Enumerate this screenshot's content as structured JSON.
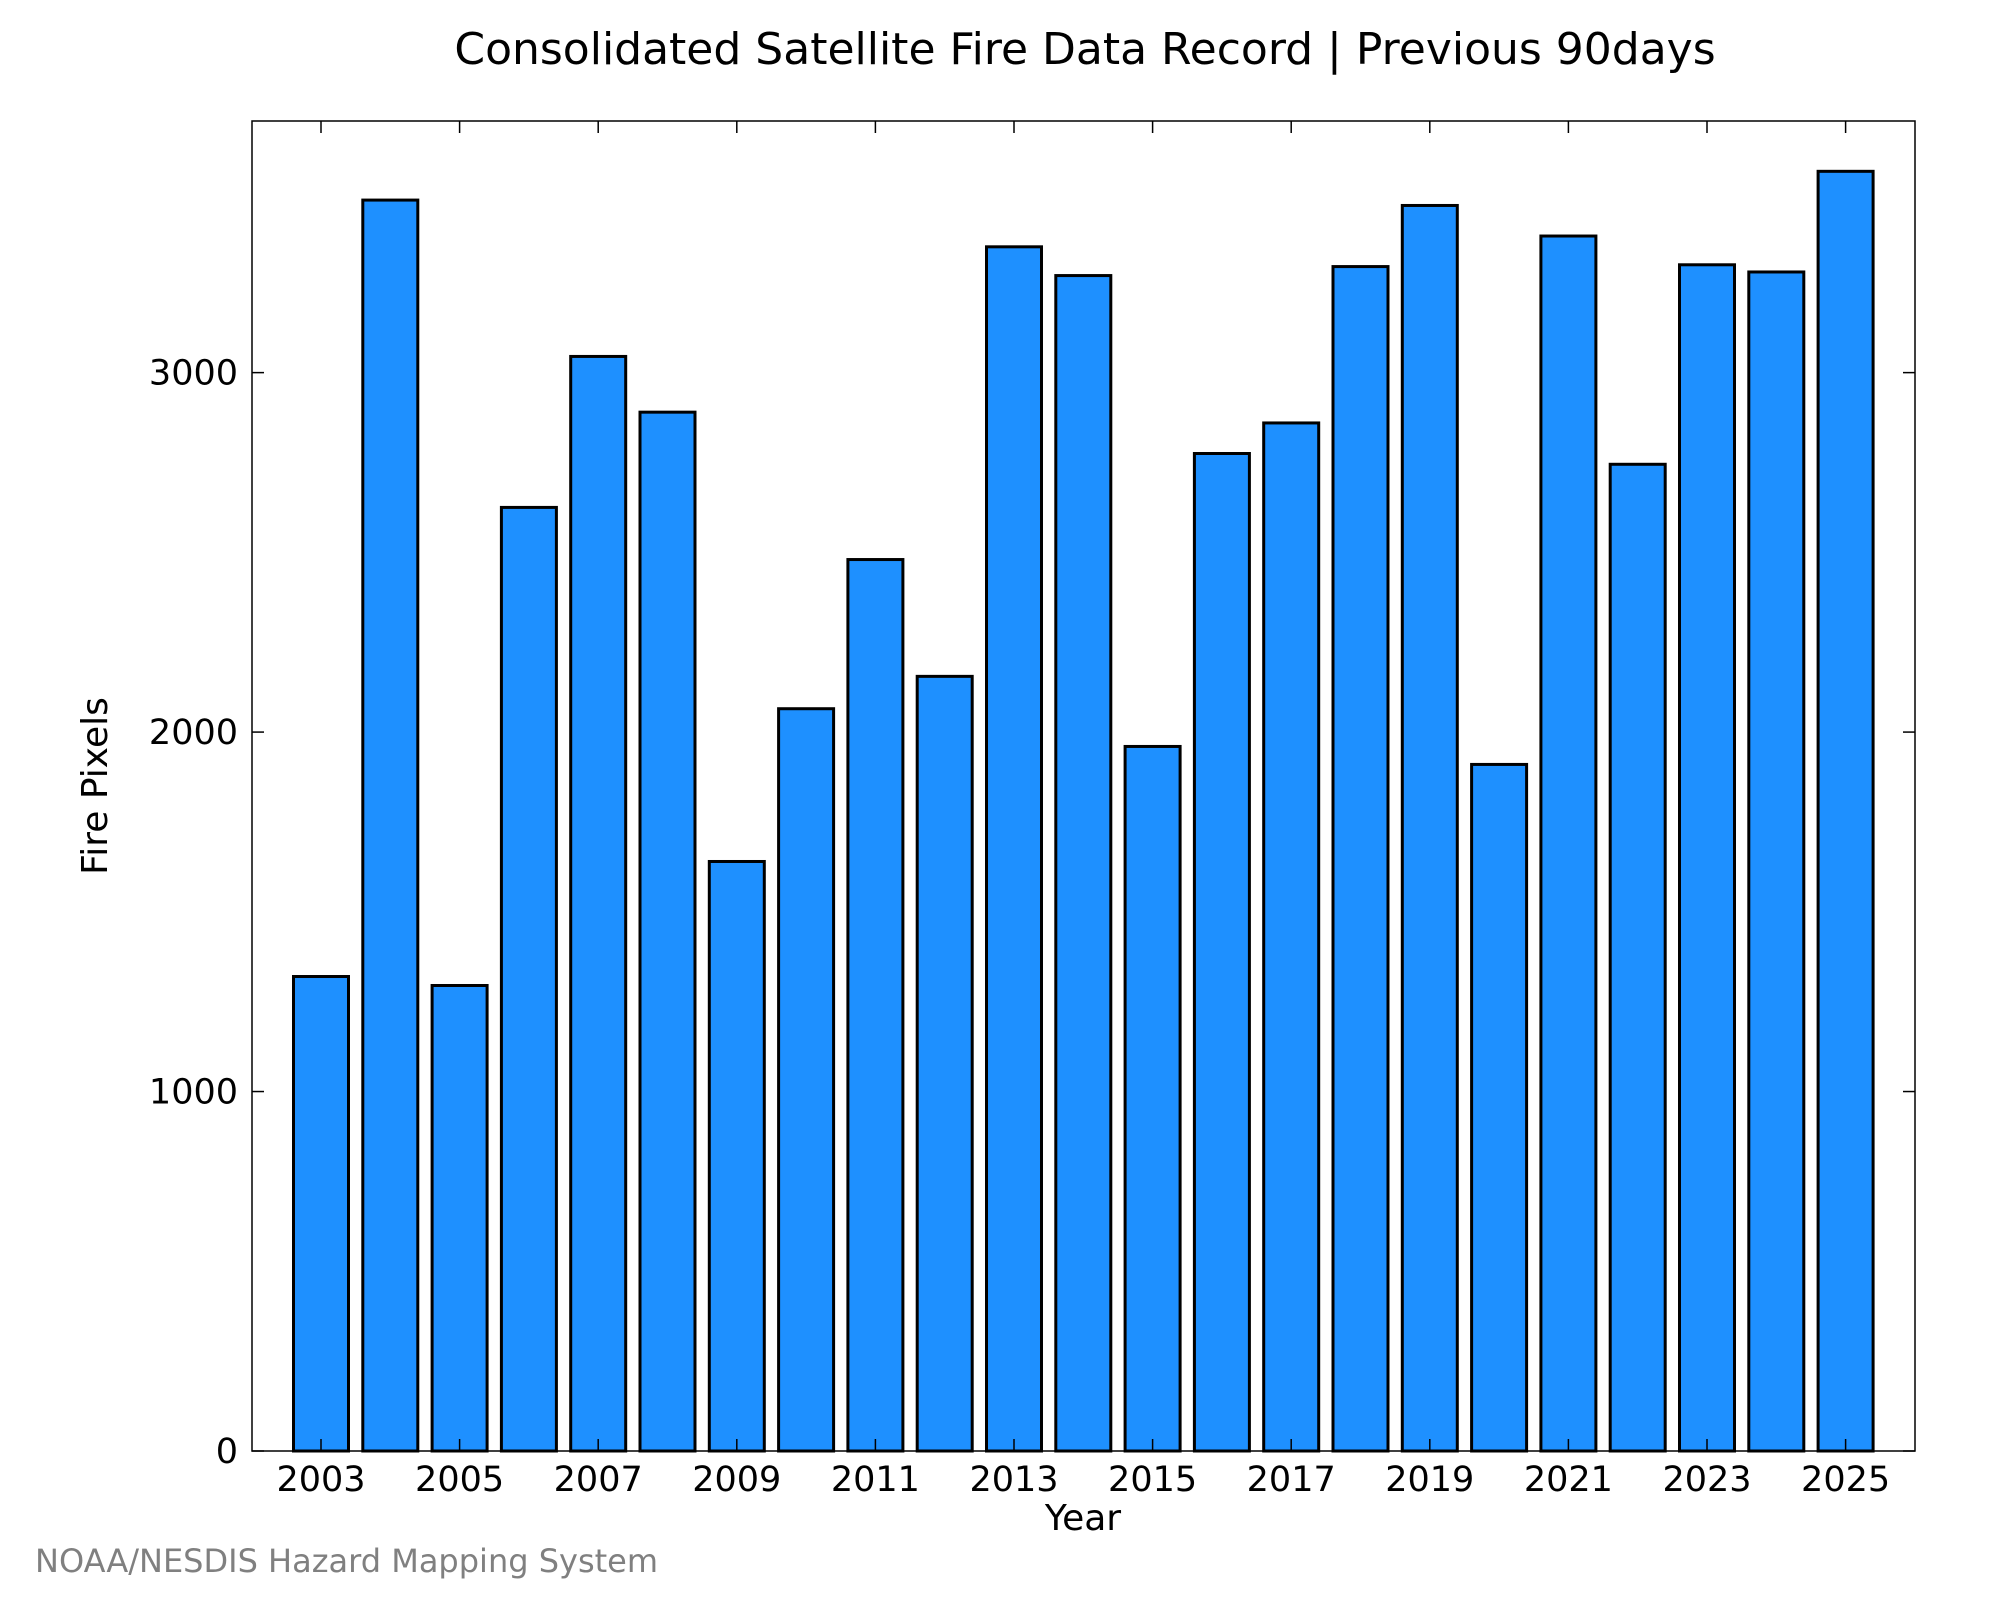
{
  "chart_data": {
    "type": "bar",
    "title": "Consolidated Satellite Fire Data Record | Previous 90days",
    "xlabel": "Year",
    "ylabel": "Fire Pixels",
    "categories": [
      "2003",
      "2004",
      "2005",
      "2006",
      "2007",
      "2008",
      "2009",
      "2010",
      "2011",
      "2012",
      "2013",
      "2014",
      "2015",
      "2016",
      "2017",
      "2018",
      "2019",
      "2020",
      "2021",
      "2022",
      "2023",
      "2024",
      "2025"
    ],
    "values": [
      1320,
      3480,
      1295,
      2625,
      3045,
      2890,
      1640,
      2065,
      2480,
      2155,
      3350,
      3270,
      1960,
      2775,
      2860,
      3295,
      3465,
      1910,
      3380,
      2745,
      3300,
      3280,
      3560
    ],
    "x_tick_labels": [
      "2003",
      "2005",
      "2007",
      "2009",
      "2011",
      "2013",
      "2015",
      "2017",
      "2019",
      "2021",
      "2023",
      "2025"
    ],
    "y_ticks": [
      0,
      1000,
      2000,
      3000
    ],
    "ylim": [
      0,
      3700
    ],
    "grid": false,
    "bar_color": "#1E90FF",
    "bar_edge_color": "#000000",
    "credit": "NOAA/NESDIS Hazard Mapping System"
  }
}
